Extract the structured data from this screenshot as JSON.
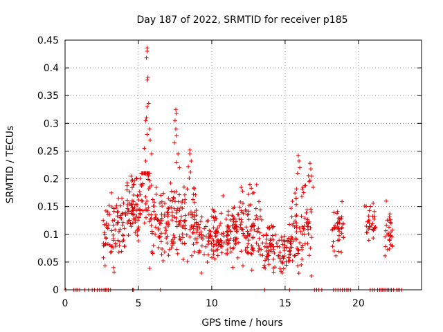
{
  "chart_data": {
    "type": "scatter",
    "title": "Day 187 of 2022, SRMTID for receiver p185",
    "xlabel": "GPS time / hours",
    "ylabel": "SRMTID / TECUs",
    "xlim": [
      0,
      24.3
    ],
    "ylim": [
      0,
      0.45
    ],
    "xticks": [
      0,
      5,
      10,
      15,
      20
    ],
    "xtick_labels": [
      "0",
      "5",
      "10",
      "15",
      "20"
    ],
    "yticks": [
      0,
      0.05,
      0.1,
      0.15,
      0.2,
      0.25,
      0.3,
      0.35,
      0.4,
      0.45
    ],
    "ytick_labels": [
      "0",
      "0.05",
      "0.1",
      "0.15",
      "0.2",
      "0.25",
      "0.3",
      "0.35",
      "0.4",
      "0.45"
    ],
    "grid": true,
    "marker": "+",
    "color": "#e00000",
    "clusters": [
      {
        "x_range": [
          2.6,
          4.2
        ],
        "y_mean": 0.11,
        "y_spread": 0.03,
        "count": 80
      },
      {
        "x_range": [
          4.2,
          5.2
        ],
        "y_mean": 0.15,
        "y_spread": 0.03,
        "count": 70
      },
      {
        "x_range": [
          5.2,
          5.8
        ],
        "y_mean": 0.2,
        "y_spread": 0.06,
        "count": 50
      },
      {
        "x_range": [
          5.8,
          7.4
        ],
        "y_mean": 0.12,
        "y_spread": 0.03,
        "count": 90
      },
      {
        "x_range": [
          7.4,
          9.0
        ],
        "y_mean": 0.13,
        "y_spread": 0.04,
        "count": 90
      },
      {
        "x_range": [
          9.0,
          11.6
        ],
        "y_mean": 0.1,
        "y_spread": 0.025,
        "count": 140
      },
      {
        "x_range": [
          11.6,
          13.4
        ],
        "y_mean": 0.11,
        "y_spread": 0.03,
        "count": 100
      },
      {
        "x_range": [
          13.4,
          15.4
        ],
        "y_mean": 0.075,
        "y_spread": 0.02,
        "count": 100
      },
      {
        "x_range": [
          15.4,
          16.8
        ],
        "y_mean": 0.11,
        "y_spread": 0.04,
        "count": 80
      },
      {
        "x_range": [
          18.2,
          19.0
        ],
        "y_mean": 0.11,
        "y_spread": 0.02,
        "count": 40
      },
      {
        "x_range": [
          20.4,
          21.2
        ],
        "y_mean": 0.12,
        "y_spread": 0.02,
        "count": 30
      },
      {
        "x_range": [
          21.8,
          22.4
        ],
        "y_mean": 0.1,
        "y_spread": 0.025,
        "count": 30
      }
    ],
    "peaks": [
      {
        "x": 5.6,
        "y": 0.436
      },
      {
        "x": 5.6,
        "y": 0.43
      },
      {
        "x": 5.55,
        "y": 0.418
      },
      {
        "x": 5.65,
        "y": 0.383
      },
      {
        "x": 5.6,
        "y": 0.378
      },
      {
        "x": 5.7,
        "y": 0.336
      },
      {
        "x": 5.6,
        "y": 0.33
      },
      {
        "x": 5.55,
        "y": 0.31
      },
      {
        "x": 5.5,
        "y": 0.305
      },
      {
        "x": 5.75,
        "y": 0.29
      },
      {
        "x": 5.6,
        "y": 0.28
      },
      {
        "x": 5.8,
        "y": 0.27
      },
      {
        "x": 5.4,
        "y": 0.255
      },
      {
        "x": 5.9,
        "y": 0.245
      },
      {
        "x": 5.5,
        "y": 0.232
      },
      {
        "x": 7.55,
        "y": 0.325
      },
      {
        "x": 7.6,
        "y": 0.318
      },
      {
        "x": 7.5,
        "y": 0.305
      },
      {
        "x": 7.55,
        "y": 0.29
      },
      {
        "x": 7.6,
        "y": 0.278
      },
      {
        "x": 7.45,
        "y": 0.265
      },
      {
        "x": 7.7,
        "y": 0.245
      },
      {
        "x": 7.6,
        "y": 0.23
      },
      {
        "x": 7.8,
        "y": 0.22
      },
      {
        "x": 8.5,
        "y": 0.252
      },
      {
        "x": 8.5,
        "y": 0.245
      },
      {
        "x": 8.6,
        "y": 0.232
      },
      {
        "x": 8.4,
        "y": 0.222
      },
      {
        "x": 8.55,
        "y": 0.212
      },
      {
        "x": 15.9,
        "y": 0.242
      },
      {
        "x": 15.95,
        "y": 0.232
      },
      {
        "x": 16.0,
        "y": 0.22
      },
      {
        "x": 15.85,
        "y": 0.21
      },
      {
        "x": 16.7,
        "y": 0.228
      },
      {
        "x": 16.75,
        "y": 0.218
      },
      {
        "x": 16.8,
        "y": 0.205
      },
      {
        "x": 16.65,
        "y": 0.195
      },
      {
        "x": 16.9,
        "y": 0.185
      },
      {
        "x": 4.5,
        "y": 0.205
      },
      {
        "x": 4.6,
        "y": 0.198
      },
      {
        "x": 4.9,
        "y": 0.2
      },
      {
        "x": 4.7,
        "y": 0.19
      },
      {
        "x": 12.0,
        "y": 0.185
      },
      {
        "x": 12.1,
        "y": 0.178
      },
      {
        "x": 12.6,
        "y": 0.19
      },
      {
        "x": 12.7,
        "y": 0.183
      },
      {
        "x": 12.5,
        "y": 0.172
      },
      {
        "x": 14.8,
        "y": 0.03
      },
      {
        "x": 14.9,
        "y": 0.038
      },
      {
        "x": 9.3,
        "y": 0.03
      },
      {
        "x": 3.3,
        "y": 0.04
      },
      {
        "x": 3.35,
        "y": 0.032
      }
    ],
    "zero_markers_x": [
      0.05,
      0.6,
      0.75,
      0.85,
      1.0,
      1.35,
      1.6,
      1.85,
      2.0,
      2.2,
      2.35,
      2.5,
      2.65,
      2.75,
      2.85,
      2.95,
      3.1,
      4.6,
      4.65,
      6.5,
      13.6,
      15.3,
      17.0,
      17.15,
      17.3,
      17.5,
      18.3,
      18.45,
      18.6,
      18.75,
      18.9,
      19.05,
      19.2,
      19.3,
      19.45,
      20.8,
      20.95,
      21.1,
      21.3,
      21.45,
      21.55,
      21.65,
      21.75,
      21.85,
      21.95,
      22.05,
      22.15,
      22.25,
      22.4,
      22.6,
      22.7,
      22.8,
      22.95
    ]
  }
}
